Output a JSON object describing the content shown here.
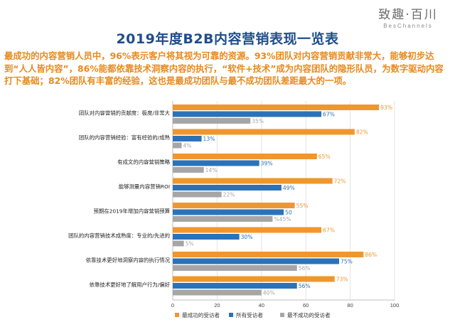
{
  "brand": {
    "name": "致趣·百川",
    "sub": "BesChannels"
  },
  "title": "2019年度B2B内容营销表现一览表",
  "summary": "最成功的内容营销人员中，96%表示客户将其视为可靠的资源。93%团队对内容营销贡献非常大，能够初步达到“人人皆内容”，86%能都依靠技术洞察内容的执行，“软件+技术”成为内容团队的隐形队员，为数字驱动内容打下基础；82%团队有丰富的经验，这也是最成功团队与最不成功团队差距最大的一项。",
  "chart_data": {
    "type": "bar",
    "orientation": "horizontal",
    "categories": [
      "团队对内容营销的贡献度：极度/非常大",
      "团队的内容营销经验：富有经验的/成熟",
      "有成文的内容营销策略",
      "能够测量内容营销ROI",
      "预期在2019年增加内容营销预算",
      "团队的内容营销技术成熟度：专业的/先进的",
      "依靠技术更好地洞察内容的执行情况",
      "依靠技术更好地了解用户行为/偏好"
    ],
    "series": [
      {
        "name": "最成功的受访者",
        "color": "#f0962e",
        "values": [
          93,
          82,
          65,
          72,
          55,
          67,
          86,
          73
        ],
        "labels": [
          "93%",
          "82%",
          "65%",
          "72%",
          "55%",
          "67%",
          "86%",
          "73%"
        ]
      },
      {
        "name": "所有受访者",
        "color": "#2b72b8",
        "values": [
          67,
          13,
          39,
          49,
          50,
          30,
          75,
          56
        ],
        "labels": [
          "67%",
          "13%",
          "39%",
          "49%",
          "50",
          "30%",
          "75%",
          "56%"
        ]
      },
      {
        "name": "最不成功的受访者",
        "color": "#a6a6a6",
        "values": [
          35,
          4,
          14,
          22,
          45,
          5,
          56,
          40
        ],
        "labels": [
          "35%",
          "4%",
          "14%",
          "22%",
          "%45%",
          "5%",
          "56%",
          "40%"
        ]
      }
    ],
    "xlim": [
      0,
      100
    ],
    "xticks": [
      "0",
      "20",
      "40",
      "60",
      "80",
      "100"
    ],
    "grid": true,
    "legend_position": "bottom-center"
  }
}
